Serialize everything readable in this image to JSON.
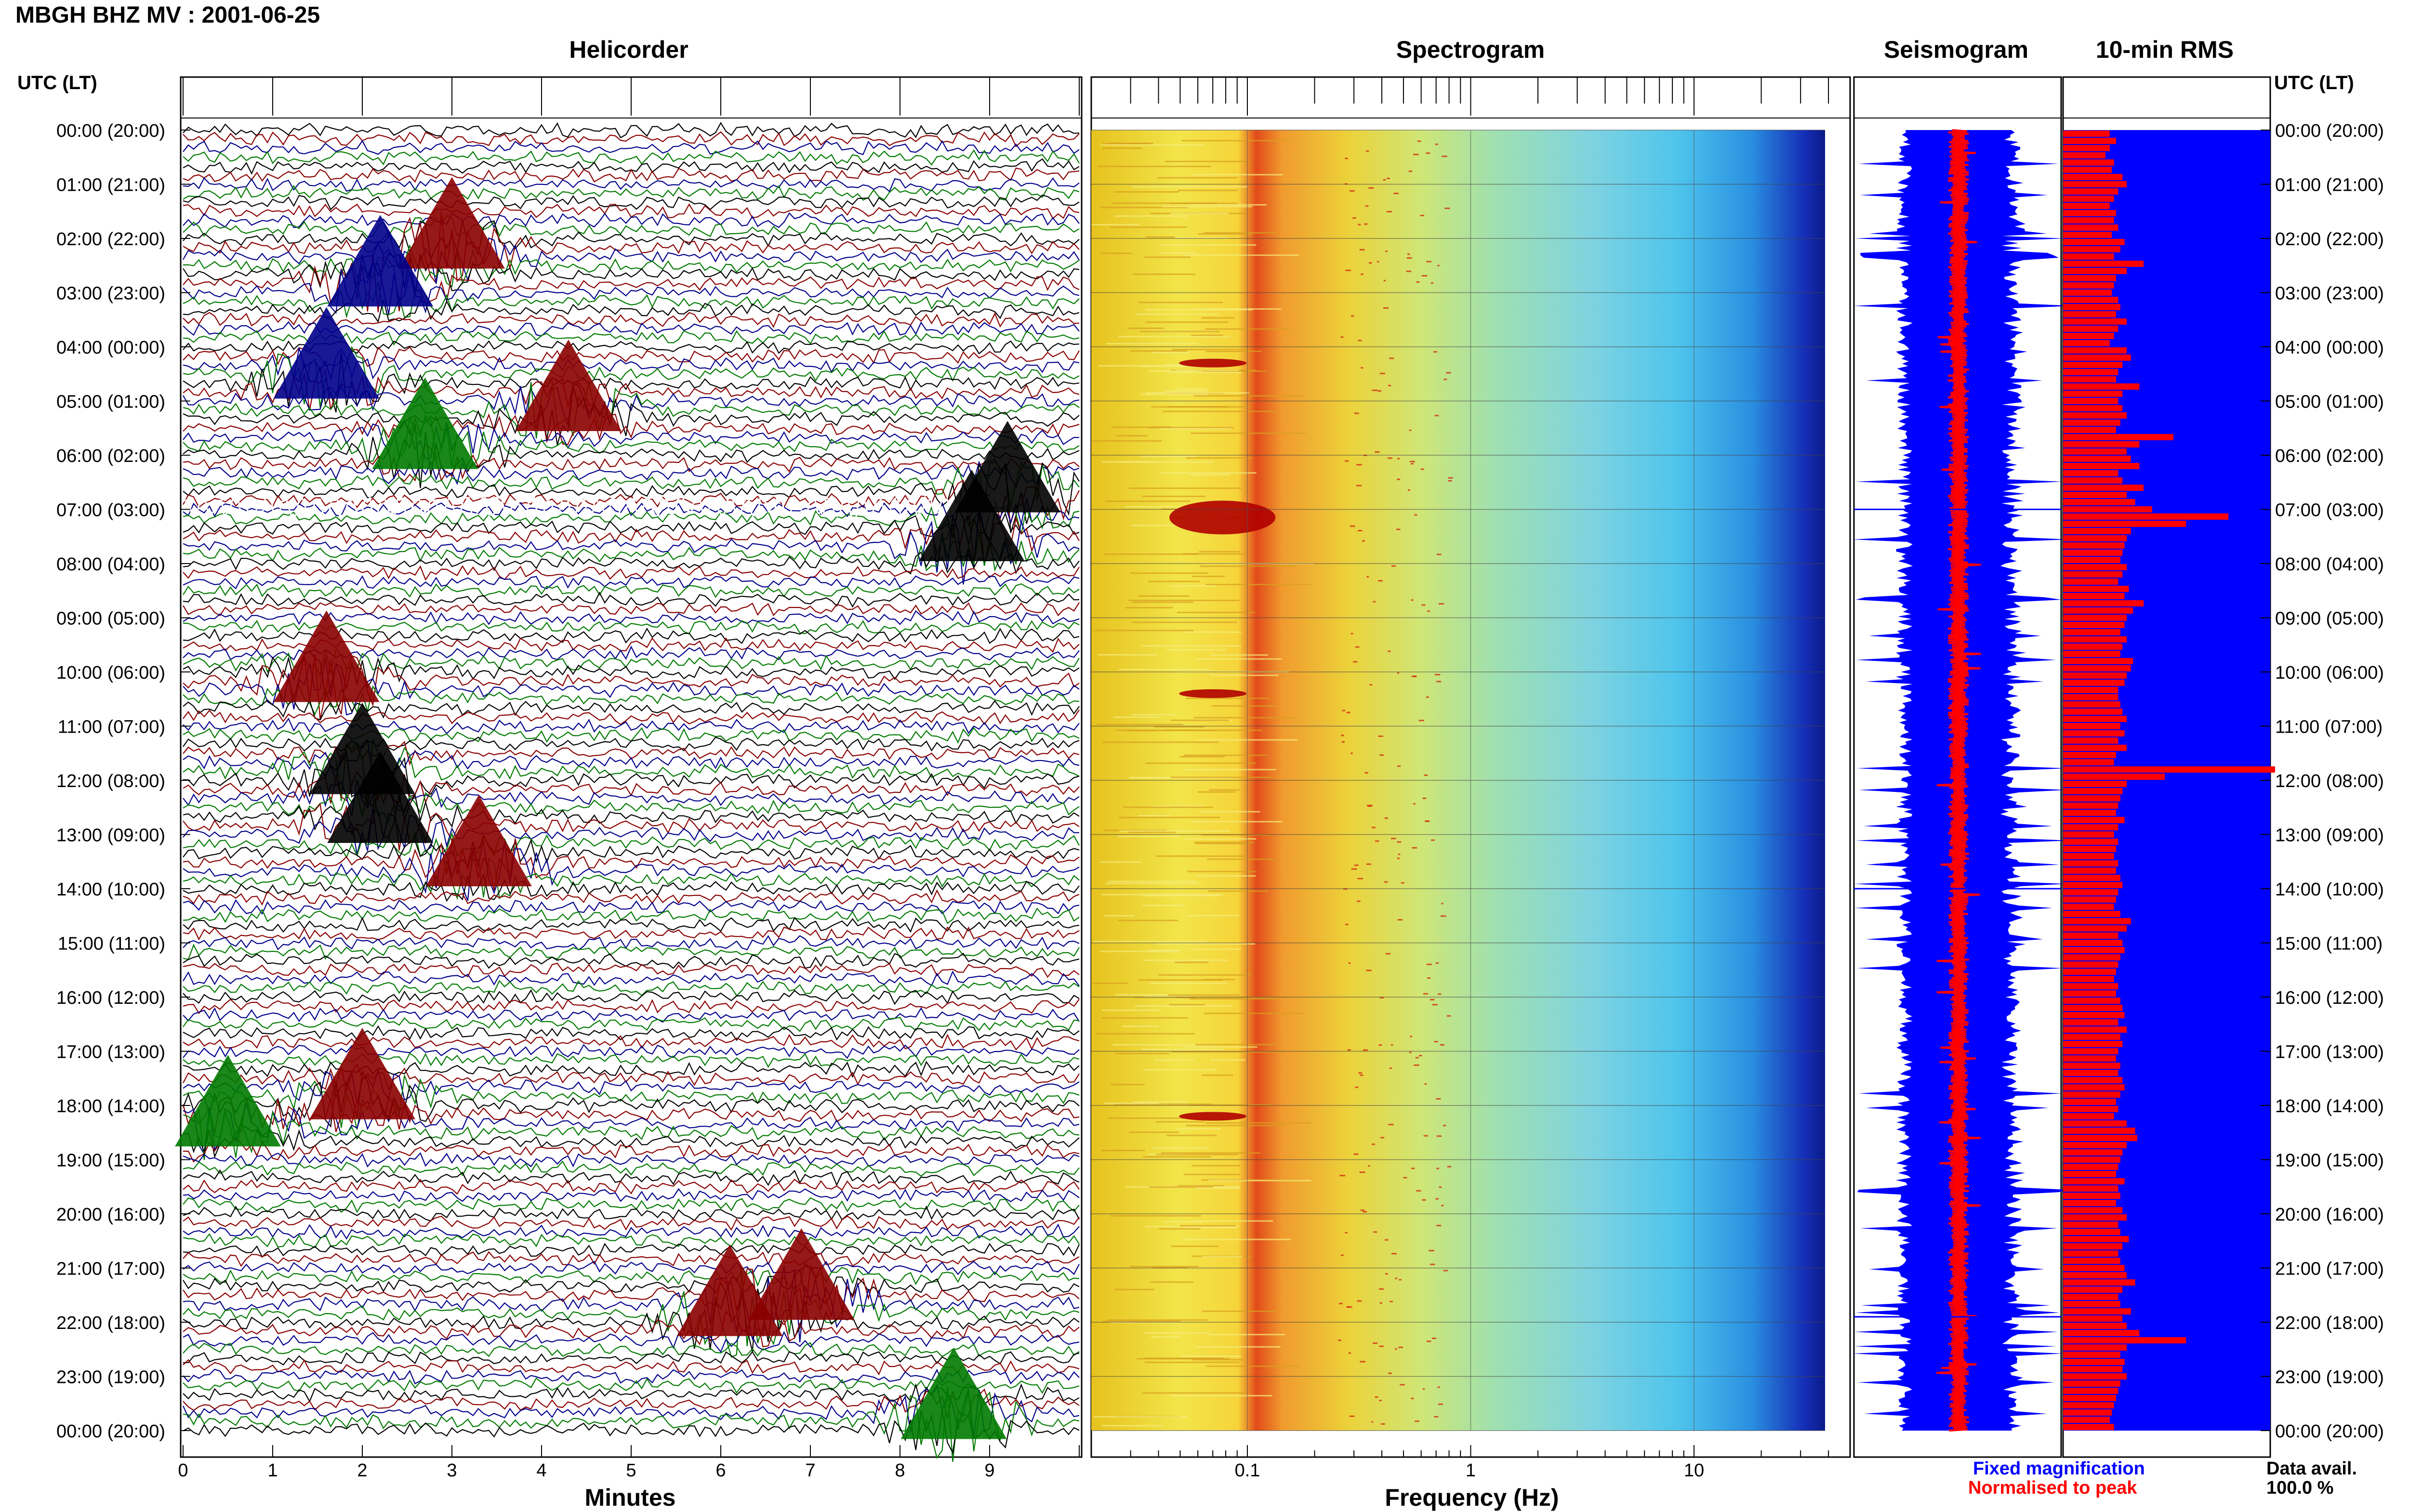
{
  "title": "MBGH BHZ MV : 2001-06-25",
  "panels": {
    "helicorder": "Helicorder",
    "spectrogram": "Spectrogram",
    "seismogram": "Seismogram",
    "rms": "10-min RMS"
  },
  "time_axis_label": "UTC (LT)",
  "time_labels": [
    "00:00 (20:00)",
    "01:00 (21:00)",
    "02:00 (22:00)",
    "03:00 (23:00)",
    "04:00 (00:00)",
    "05:00 (01:00)",
    "06:00 (02:00)",
    "07:00 (03:00)",
    "08:00 (04:00)",
    "09:00 (05:00)",
    "10:00 (06:00)",
    "11:00 (07:00)",
    "12:00 (08:00)",
    "13:00 (09:00)",
    "14:00 (10:00)",
    "15:00 (11:00)",
    "16:00 (12:00)",
    "17:00 (13:00)",
    "18:00 (14:00)",
    "19:00 (15:00)",
    "20:00 (16:00)",
    "21:00 (17:00)",
    "22:00 (18:00)",
    "23:00 (19:00)",
    "00:00 (20:00)"
  ],
  "legend": {
    "fixed": "Fixed magnification",
    "normalised": "Normalised to peak",
    "data_avail_label": "Data avail.",
    "data_avail_value": "100.0 %"
  },
  "colors": {
    "trace_black": "#000000",
    "trace_red": "#8b0000",
    "trace_blue": "#00008b",
    "trace_green": "#007a00",
    "fixed": "#0000ff",
    "normalised": "#ff0000",
    "rms_bg": "#0000ff",
    "rms_bar": "#ff0000"
  },
  "chart_data": [
    {
      "type": "line",
      "title": "Helicorder",
      "xlabel": "Minutes",
      "x_ticks": [
        "0",
        "1",
        "2",
        "3",
        "4",
        "5",
        "6",
        "7",
        "8",
        "9"
      ],
      "xlim": [
        0,
        10
      ],
      "ylim_hours": [
        0,
        24
      ],
      "events": [
        {
          "hour": 4.6,
          "minute": 1.6,
          "color": "blue"
        },
        {
          "hour": 2.2,
          "minute": 3.0,
          "color": "red"
        },
        {
          "hour": 2.9,
          "minute": 2.2,
          "color": "blue"
        },
        {
          "hour": 5.2,
          "minute": 4.3,
          "color": "red"
        },
        {
          "hour": 5.9,
          "minute": 2.7,
          "color": "green"
        },
        {
          "hour": 6.7,
          "minute": 9.2,
          "color": "black"
        },
        {
          "hour": 7.6,
          "minute": 8.8,
          "color": "black"
        },
        {
          "hour": 10.2,
          "minute": 1.6,
          "color": "red"
        },
        {
          "hour": 11.9,
          "minute": 2.0,
          "color": "black"
        },
        {
          "hour": 12.8,
          "minute": 2.2,
          "color": "black"
        },
        {
          "hour": 13.6,
          "minute": 3.3,
          "color": "red"
        },
        {
          "hour": 17.9,
          "minute": 2.0,
          "color": "red"
        },
        {
          "hour": 18.4,
          "minute": 0.5,
          "color": "green"
        },
        {
          "hour": 21.6,
          "minute": 6.9,
          "color": "red"
        },
        {
          "hour": 21.9,
          "minute": 6.1,
          "color": "red"
        },
        {
          "hour": 23.8,
          "minute": 8.6,
          "color": "green"
        }
      ]
    },
    {
      "type": "heatmap",
      "title": "Spectrogram",
      "xlabel": "Frequency (Hz)",
      "x_scale": "log",
      "x_ticks": [
        "0.1",
        "1",
        "10"
      ],
      "xlim": [
        0.02,
        50
      ],
      "ylim_hours": [
        0,
        24
      ],
      "band_peak_hz": 0.3,
      "events": [
        {
          "hour": 7.15,
          "freq": 0.07
        },
        {
          "hour": 4.3,
          "freq": 0.07
        },
        {
          "hour": 18.2,
          "freq": 0.07
        },
        {
          "hour": 10.4,
          "freq": 0.07
        }
      ]
    },
    {
      "type": "line",
      "title": "Seismogram",
      "ylim_hours": [
        0,
        24
      ],
      "series": [
        {
          "name": "Fixed magnification",
          "color": "#0000ff"
        },
        {
          "name": "Normalised to peak",
          "color": "#ff0000"
        }
      ]
    },
    {
      "type": "bar",
      "title": "10-min RMS",
      "orientation": "horizontal",
      "bins_per_hour": 6,
      "values": [
        0.22,
        0.25,
        0.22,
        0.2,
        0.24,
        0.23,
        0.28,
        0.3,
        0.26,
        0.24,
        0.22,
        0.25,
        0.24,
        0.26,
        0.23,
        0.29,
        0.27,
        0.24,
        0.38,
        0.3,
        0.25,
        0.24,
        0.23,
        0.26,
        0.27,
        0.25,
        0.3,
        0.26,
        0.24,
        0.22,
        0.3,
        0.32,
        0.28,
        0.26,
        0.25,
        0.36,
        0.28,
        0.26,
        0.28,
        0.3,
        0.27,
        0.25,
        0.52,
        0.36,
        0.3,
        0.32,
        0.36,
        0.26,
        0.28,
        0.38,
        0.3,
        0.34,
        0.42,
        0.78,
        0.58,
        0.32,
        0.3,
        0.29,
        0.28,
        0.27,
        0.3,
        0.28,
        0.26,
        0.31,
        0.29,
        0.38,
        0.33,
        0.3,
        0.29,
        0.27,
        0.3,
        0.28,
        0.27,
        0.33,
        0.32,
        0.3,
        0.29,
        0.26,
        0.26,
        0.27,
        0.28,
        0.3,
        0.27,
        0.29,
        0.26,
        0.3,
        0.25,
        0.24,
        1.0,
        0.48,
        0.3,
        0.28,
        0.27,
        0.26,
        0.25,
        0.29,
        0.26,
        0.24,
        0.26,
        0.25,
        0.24,
        0.26,
        0.25,
        0.27,
        0.28,
        0.26,
        0.25,
        0.24,
        0.27,
        0.32,
        0.3,
        0.26,
        0.28,
        0.29,
        0.27,
        0.26,
        0.25,
        0.24,
        0.26,
        0.25,
        0.27,
        0.28,
        0.29,
        0.26,
        0.3,
        0.27,
        0.28,
        0.26,
        0.25,
        0.27,
        0.26,
        0.28,
        0.29,
        0.27,
        0.25,
        0.26,
        0.24,
        0.3,
        0.34,
        0.35,
        0.3,
        0.28,
        0.27,
        0.26,
        0.25,
        0.29,
        0.26,
        0.27,
        0.25,
        0.28,
        0.3,
        0.26,
        0.27,
        0.31,
        0.28,
        0.26,
        0.27,
        0.29,
        0.3,
        0.34,
        0.28,
        0.26,
        0.27,
        0.32,
        0.28,
        0.3,
        0.36,
        0.58,
        0.3,
        0.27,
        0.29,
        0.28,
        0.3,
        0.27,
        0.26,
        0.25,
        0.24,
        0.23,
        0.22,
        0.24
      ]
    }
  ]
}
